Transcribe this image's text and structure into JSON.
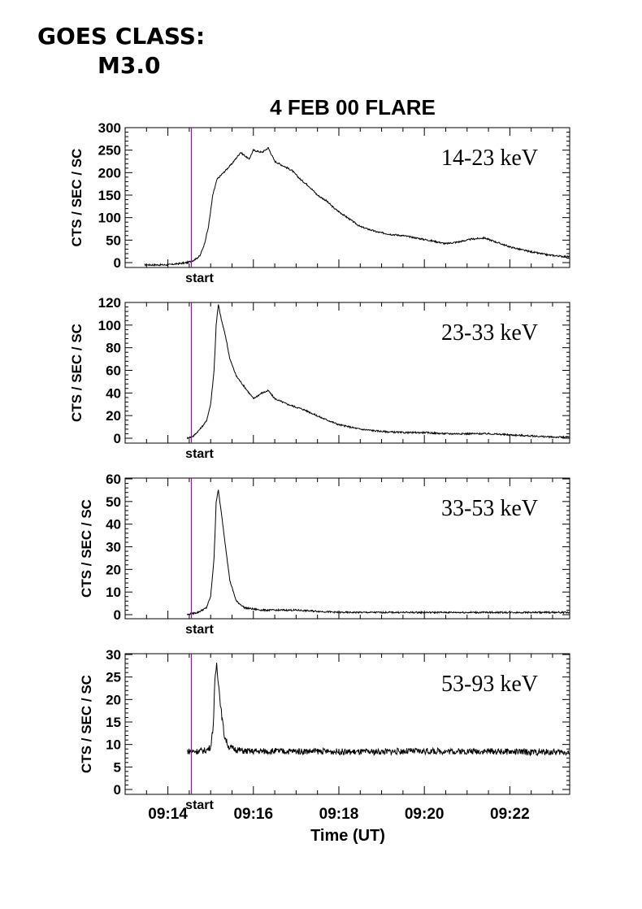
{
  "header": {
    "class_label": "GOES CLASS:",
    "class_value": "M3.0"
  },
  "chart_data": {
    "type": "line",
    "title": "4 FEB 00 FLARE",
    "xlabel": "Time (UT)",
    "x_ticks": [
      "09:14",
      "09:16",
      "09:18",
      "09:20",
      "09:22"
    ],
    "xlim_minutes": [
      13.0,
      23.4
    ],
    "marker": {
      "label": "start",
      "x_minutes": 14.55,
      "color": "#b000c8"
    },
    "line_color": "#000000",
    "panels": [
      {
        "name": "14-23 keV",
        "ylabel": "CTS / SEC / SC",
        "ylim": [
          0,
          300
        ],
        "y_ticks": [
          "0",
          "50",
          "100",
          "150",
          "200",
          "250",
          "300"
        ],
        "x": [
          13.45,
          14.0,
          14.45,
          14.6,
          14.75,
          14.85,
          14.95,
          15.05,
          15.15,
          15.3,
          15.5,
          15.7,
          15.9,
          16.0,
          16.2,
          16.35,
          16.5,
          16.7,
          16.9,
          17.1,
          17.3,
          17.5,
          17.7,
          17.9,
          18.2,
          18.5,
          18.9,
          19.2,
          19.5,
          19.8,
          20.2,
          20.5,
          20.8,
          21.1,
          21.4,
          21.7,
          22.0,
          22.3,
          22.6,
          22.9,
          23.2,
          23.4
        ],
        "y": [
          -5,
          -5,
          0,
          5,
          15,
          40,
          80,
          150,
          185,
          200,
          220,
          245,
          230,
          250,
          245,
          255,
          225,
          215,
          205,
          185,
          170,
          150,
          138,
          120,
          100,
          80,
          68,
          63,
          60,
          55,
          48,
          42,
          46,
          52,
          55,
          45,
          35,
          28,
          22,
          17,
          14,
          13
        ]
      },
      {
        "name": "23-33 keV",
        "ylabel": "CTS / SEC / SC",
        "ylim": [
          0,
          120
        ],
        "y_ticks": [
          "0",
          "20",
          "40",
          "60",
          "80",
          "100",
          "120"
        ],
        "x": [
          14.45,
          14.6,
          14.75,
          14.9,
          15.0,
          15.08,
          15.13,
          15.18,
          15.25,
          15.35,
          15.45,
          15.6,
          15.8,
          16.0,
          16.2,
          16.35,
          16.5,
          16.8,
          17.2,
          17.6,
          18.0,
          18.5,
          19.0,
          19.5,
          20.0,
          20.5,
          21.0,
          21.5,
          22.0,
          22.5,
          23.0,
          23.4
        ],
        "y": [
          0,
          2,
          8,
          15,
          30,
          60,
          100,
          118,
          105,
          90,
          70,
          55,
          45,
          35,
          40,
          42,
          35,
          30,
          25,
          18,
          12,
          8,
          6,
          5,
          5,
          4,
          4,
          4,
          3,
          2,
          1,
          1
        ]
      },
      {
        "name": "33-53 keV",
        "ylabel": "CTS / SEC / SC",
        "ylim": [
          0,
          60
        ],
        "y_ticks": [
          "0",
          "10",
          "20",
          "30",
          "40",
          "50",
          "60"
        ],
        "x": [
          14.45,
          14.7,
          14.9,
          15.0,
          15.08,
          15.13,
          15.18,
          15.25,
          15.35,
          15.45,
          15.6,
          15.8,
          16.2,
          17.0,
          18.0,
          19.0,
          20.0,
          21.0,
          22.0,
          23.4
        ],
        "y": [
          0,
          1,
          3,
          8,
          25,
          50,
          55,
          45,
          30,
          15,
          6,
          3,
          2,
          2,
          1,
          1,
          1,
          1,
          1,
          1
        ]
      },
      {
        "name": "53-93 keV",
        "ylabel": "CTS / SEC / SC",
        "ylim": [
          0,
          30
        ],
        "y_ticks": [
          "0",
          "5",
          "10",
          "15",
          "20",
          "25",
          "30"
        ],
        "x": [
          14.45,
          14.7,
          14.9,
          15.0,
          15.06,
          15.1,
          15.14,
          15.18,
          15.24,
          15.32,
          15.42,
          15.55,
          15.8,
          16.5,
          17.5,
          18.5,
          19.5,
          20.5,
          21.5,
          22.5,
          23.4
        ],
        "y": [
          8.5,
          8.5,
          8.7,
          9.5,
          14,
          24,
          28,
          24,
          18,
          12,
          9.5,
          9,
          8.5,
          8.5,
          8.5,
          8.3,
          8.5,
          8.5,
          8.5,
          8.3,
          8.3
        ]
      }
    ]
  }
}
